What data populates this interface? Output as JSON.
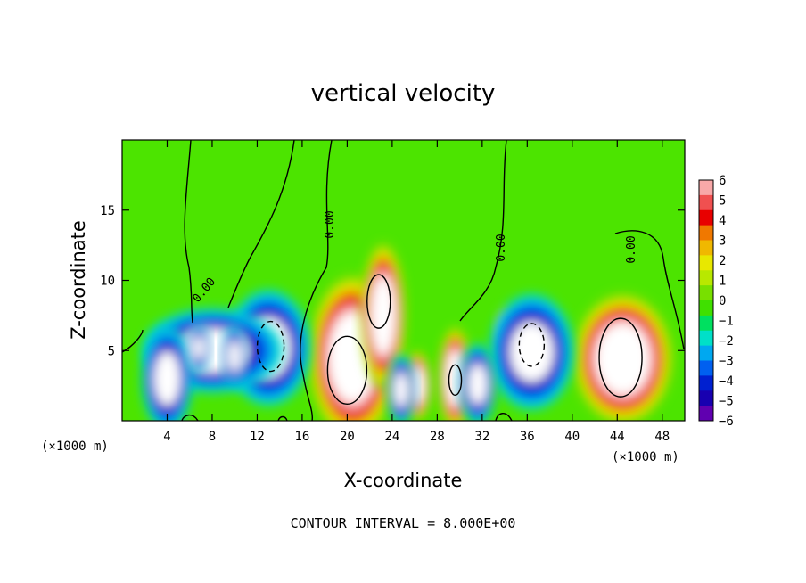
{
  "chart_data": {
    "type": "heatmap",
    "title": "vertical velocity",
    "xlabel": "X-coordinate",
    "ylabel": "Z-coordinate",
    "x_unit_left": "(×1000 m)",
    "x_unit_right": "(×1000 m)",
    "xlim": [
      0,
      50
    ],
    "ylim": [
      0,
      20
    ],
    "x_ticks": [
      4,
      8,
      12,
      16,
      20,
      24,
      28,
      32,
      36,
      40,
      44,
      48
    ],
    "y_ticks": [
      5,
      10,
      15
    ],
    "colorbar": {
      "range": [
        -6,
        6
      ],
      "ticks": [
        6,
        5,
        4,
        3,
        2,
        1,
        0,
        -1,
        -2,
        -3,
        -4,
        -5,
        -6
      ],
      "colors": [
        "#f8a8a8",
        "#f05050",
        "#e80000",
        "#f07800",
        "#f0b800",
        "#e8e800",
        "#b8e800",
        "#78e000",
        "#40e000",
        "#00e060",
        "#00e0c8",
        "#00a8f0",
        "#0060f0",
        "#0020d0",
        "#1800b0",
        "#6000b0"
      ]
    },
    "contour_label": "0.00",
    "contour_interval_text": "CONTOUR INTERVAL = 8.000E+00",
    "background_color": "#4ce400",
    "features": [
      {
        "kind": "updraft",
        "x": 20.5,
        "z": 4.5,
        "rx": 3.2,
        "rz": 4.8
      },
      {
        "kind": "updraft",
        "x": 23.2,
        "z": 7.5,
        "rx": 1.6,
        "rz": 4.2
      },
      {
        "kind": "updraft",
        "x": 44.5,
        "z": 4.4,
        "rx": 3.6,
        "rz": 3.8
      },
      {
        "kind": "updraft",
        "x": 29.6,
        "z": 3.0,
        "rx": 1.2,
        "rz": 3.0
      },
      {
        "kind": "updraft",
        "x": 26.2,
        "z": 2.5,
        "rx": 1.0,
        "rz": 2.0
      },
      {
        "kind": "updraft",
        "x": 34.2,
        "z": 6.2,
        "rx": 0.8,
        "rz": 1.5
      },
      {
        "kind": "downdraft",
        "x": 13.0,
        "z": 5.2,
        "rx": 3.0,
        "rz": 3.3
      },
      {
        "kind": "downdraft",
        "x": 8.0,
        "z": 5.0,
        "rx": 5.0,
        "rz": 2.4
      },
      {
        "kind": "downdraft",
        "x": 4.0,
        "z": 3.0,
        "rx": 1.8,
        "rz": 3.0
      },
      {
        "kind": "downdraft",
        "x": 36.4,
        "z": 4.9,
        "rx": 3.0,
        "rz": 3.3
      },
      {
        "kind": "downdraft",
        "x": 31.6,
        "z": 2.6,
        "rx": 1.3,
        "rz": 2.3
      },
      {
        "kind": "downdraft",
        "x": 6.8,
        "z": 5.2,
        "rx": 0.8,
        "rz": 1.4
      },
      {
        "kind": "downdraft",
        "x": 10.0,
        "z": 4.6,
        "rx": 0.9,
        "rz": 1.8
      },
      {
        "kind": "downdraft",
        "x": 24.8,
        "z": 2.2,
        "rx": 1.0,
        "rz": 2.0
      }
    ]
  }
}
